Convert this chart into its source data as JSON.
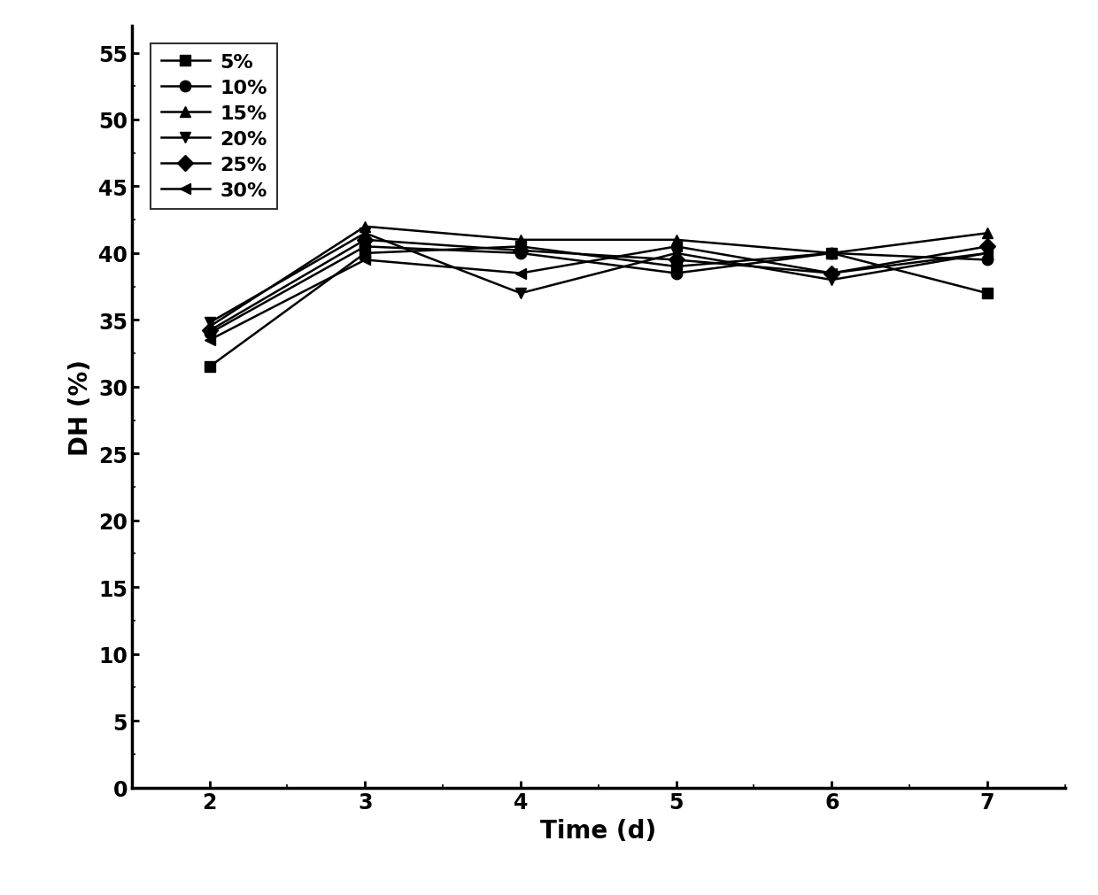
{
  "series": [
    {
      "label": "5%",
      "x": [
        2,
        3,
        4,
        5,
        6,
        7
      ],
      "y": [
        31.5,
        40.0,
        40.5,
        39.0,
        40.0,
        37.0
      ],
      "marker": "s",
      "color": "#000000"
    },
    {
      "label": "10%",
      "x": [
        2,
        3,
        4,
        5,
        6,
        7
      ],
      "y": [
        34.0,
        40.5,
        40.0,
        38.5,
        40.0,
        39.5
      ],
      "marker": "o",
      "color": "#000000"
    },
    {
      "label": "15%",
      "x": [
        2,
        3,
        4,
        5,
        6,
        7
      ],
      "y": [
        34.5,
        42.0,
        41.0,
        41.0,
        40.0,
        41.5
      ],
      "marker": "^",
      "color": "#000000"
    },
    {
      "label": "20%",
      "x": [
        2,
        3,
        4,
        5,
        6,
        7
      ],
      "y": [
        34.8,
        41.5,
        37.0,
        40.0,
        38.0,
        40.0
      ],
      "marker": "v",
      "color": "#000000"
    },
    {
      "label": "25%",
      "x": [
        2,
        3,
        4,
        5,
        6,
        7
      ],
      "y": [
        34.2,
        41.0,
        40.2,
        39.5,
        38.5,
        40.5
      ],
      "marker": "D",
      "color": "#000000"
    },
    {
      "label": "30%",
      "x": [
        2,
        3,
        4,
        5,
        6,
        7
      ],
      "y": [
        33.5,
        39.5,
        38.5,
        40.5,
        38.5,
        40.0
      ],
      "marker": "<",
      "color": "#000000"
    }
  ],
  "xlabel": "Time (d)",
  "ylabel": "DH (%)",
  "xlim": [
    1.5,
    7.5
  ],
  "ylim": [
    0,
    57
  ],
  "yticks": [
    0,
    5,
    10,
    15,
    20,
    25,
    30,
    35,
    40,
    45,
    50,
    55
  ],
  "xticks": [
    2,
    3,
    4,
    5,
    6,
    7
  ],
  "background_color": "#ffffff",
  "linewidth": 1.8,
  "markersize": 9,
  "legend_fontsize": 16,
  "axis_label_fontsize": 20,
  "tick_fontsize": 17
}
